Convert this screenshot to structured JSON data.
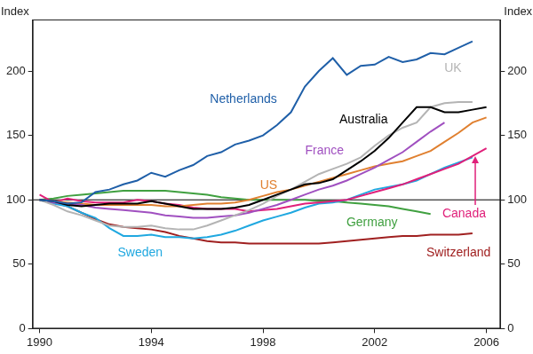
{
  "chart_data": {
    "type": "line",
    "y_label": "Index",
    "x": [
      1990,
      1990.5,
      1991,
      1991.5,
      1992,
      1992.5,
      1993,
      1993.5,
      1994,
      1994.5,
      1995,
      1995.5,
      1996,
      1996.5,
      1997,
      1997.5,
      1998,
      1998.5,
      1999,
      1999.5,
      2000,
      2000.5,
      2001,
      2001.5,
      2002,
      2002.5,
      2003,
      2003.5,
      2004,
      2004.5,
      2005,
      2005.5,
      2006
    ],
    "xlim": [
      1989.75,
      2006.5
    ],
    "xticks": [
      1990,
      1994,
      1998,
      2002,
      2006
    ],
    "ylim": [
      0,
      240
    ],
    "yticks": [
      0,
      50,
      100,
      150,
      200
    ],
    "y2lim": [
      0,
      240
    ],
    "y2ticks": [
      0,
      50,
      100,
      150,
      200
    ],
    "grid": false,
    "reference_line": 100,
    "series": [
      {
        "name": "Netherlands",
        "color": "#1f5fa8",
        "values": [
          100,
          99,
          97,
          98,
          106,
          108,
          112,
          115,
          121,
          118,
          123,
          127,
          134,
          137,
          143,
          146,
          150,
          158,
          168,
          188,
          200,
          210,
          197,
          204,
          205,
          211,
          207,
          209,
          214,
          213,
          218,
          223,
          null
        ]
      },
      {
        "name": "Australia",
        "color": "#000000",
        "values": [
          100,
          99,
          96,
          95,
          96,
          97,
          97,
          97,
          99,
          97,
          95,
          93,
          93,
          93,
          94,
          96,
          100,
          104,
          108,
          112,
          113,
          116,
          123,
          130,
          138,
          148,
          160,
          172,
          172,
          168,
          168,
          170,
          172
        ]
      },
      {
        "name": "UK",
        "color": "#b4b4b4",
        "values": [
          100,
          96,
          91,
          88,
          84,
          80,
          79,
          79,
          80,
          78,
          77,
          77,
          80,
          84,
          88,
          92,
          97,
          103,
          108,
          114,
          120,
          124,
          128,
          133,
          142,
          150,
          156,
          160,
          172,
          175,
          176,
          176,
          null
        ]
      },
      {
        "name": "France",
        "color": "#a050c0",
        "values": [
          100,
          98,
          97,
          96,
          94,
          93,
          92,
          91,
          90,
          88,
          87,
          86,
          86,
          87,
          88,
          90,
          93,
          96,
          100,
          104,
          108,
          111,
          115,
          120,
          125,
          131,
          137,
          145,
          153,
          160,
          null,
          null,
          null
        ]
      },
      {
        "name": "US",
        "color": "#e08030",
        "values": [
          100,
          99,
          98,
          97,
          96,
          96,
          96,
          96,
          96,
          95,
          95,
          96,
          97,
          97,
          98,
          100,
          103,
          106,
          108,
          111,
          114,
          117,
          120,
          123,
          126,
          128,
          130,
          134,
          138,
          145,
          152,
          160,
          164
        ]
      },
      {
        "name": "Canada",
        "color": "#e0207a",
        "values": [
          104,
          98,
          101,
          99,
          98,
          98,
          98,
          100,
          99,
          97,
          96,
          94,
          93,
          93,
          93,
          91,
          92,
          93,
          95,
          97,
          98,
          99,
          100,
          103,
          106,
          109,
          112,
          116,
          120,
          124,
          128,
          134,
          140
        ]
      },
      {
        "name": "Sweden",
        "color": "#20a8e0",
        "values": [
          100,
          97,
          95,
          90,
          86,
          78,
          72,
          72,
          73,
          71,
          71,
          70,
          71,
          73,
          76,
          80,
          84,
          87,
          90,
          94,
          97,
          98,
          100,
          104,
          108,
          110,
          112,
          115,
          120,
          125,
          129,
          133,
          null
        ]
      },
      {
        "name": "Germany",
        "color": "#40a040",
        "values": [
          100,
          101,
          103,
          104,
          105,
          106,
          107,
          107,
          107,
          107,
          106,
          105,
          104,
          102,
          101,
          100,
          100,
          100,
          100,
          100,
          99,
          99,
          98,
          97,
          96,
          95,
          93,
          91,
          89,
          null,
          null,
          null,
          null
        ]
      },
      {
        "name": "Switzerland",
        "color": "#a02020",
        "values": [
          100,
          98,
          95,
          90,
          85,
          81,
          79,
          78,
          77,
          75,
          72,
          70,
          68,
          67,
          67,
          66,
          66,
          66,
          66,
          66,
          66,
          67,
          68,
          69,
          70,
          71,
          72,
          72,
          73,
          73,
          73,
          74,
          null
        ]
      }
    ]
  }
}
